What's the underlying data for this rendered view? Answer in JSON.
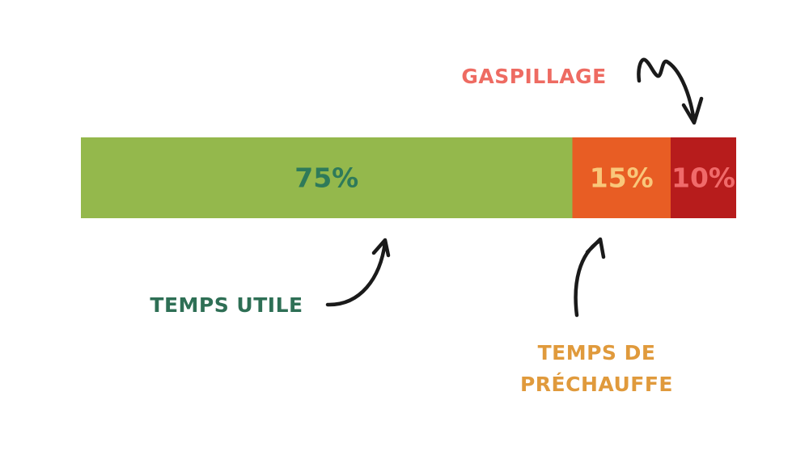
{
  "chart_data": {
    "type": "stacked-bar",
    "series": [
      {
        "name": "TEMPS UTILE",
        "color": "#94b84c",
        "label_color": "#2e7a5a",
        "name_color": "#2e6f55",
        "values": [
          75
        ],
        "value_labels": [
          "75%"
        ]
      },
      {
        "name": "TEMPS DE PRÉCHAUFFE",
        "color": "#e85d24",
        "label_color": "#f9c77a",
        "name_color": "#e09a3c",
        "values": [
          15
        ],
        "value_labels": [
          "15%"
        ]
      },
      {
        "name": "GASPILLAGE",
        "color": "#b71c1c",
        "label_color": "#f06a6a",
        "name_color": "#ee6b62",
        "values": [
          10
        ],
        "value_labels": [
          "10%"
        ]
      }
    ]
  }
}
